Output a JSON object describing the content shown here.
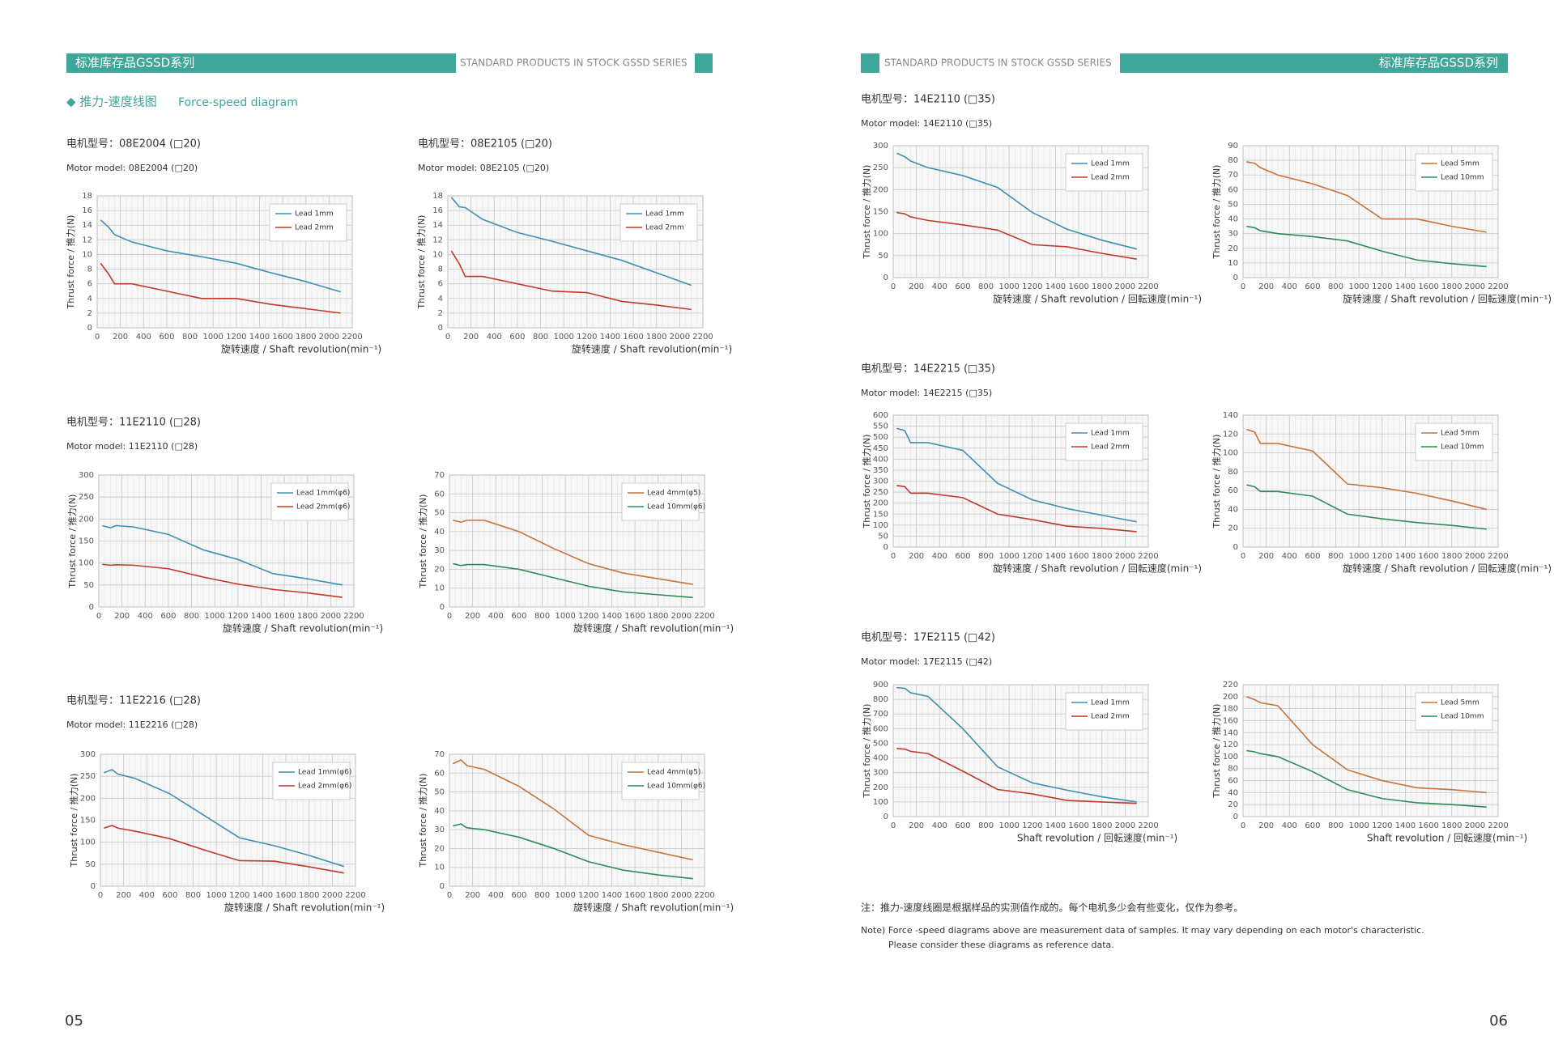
{
  "left_header": {
    "title": "标准库存品GSSD系列",
    "subtitle": "STANDARD PRODUCTS IN STOCK GSSD SERIES"
  },
  "right_header": {
    "title": "标准库存品GSSD系列",
    "subtitle": "STANDARD PRODUCTS IN STOCK GSSD SERIES"
  },
  "section_title": {
    "cn": "◆ 推力-速度线图",
    "en": "Force-speed diagram"
  },
  "models": [
    {
      "cn": "电机型号：08E2004 (□20)",
      "en": "Motor model: 08E2004 (□20)"
    },
    {
      "cn": "电机型号：08E2105 (□20)",
      "en": "Motor model: 08E2105 (□20)"
    },
    {
      "cn": "电机型号：11E2110 (□28)",
      "en": "Motor model: 11E2110 (□28)"
    },
    {
      "cn": "电机型号：11E2216 (□28)",
      "en": "Motor model: 11E2216 (□28)"
    },
    {
      "cn": "电机型号：14E2110 (□35)",
      "en": "Motor model: 14E2110 (□35)"
    },
    {
      "cn": "电机型号：14E2215 (□35)",
      "en": "Motor model: 14E2215 (□35)"
    },
    {
      "cn": "电机型号：17E2115 (□42)",
      "en": "Motor model: 17E2115 (□42)"
    }
  ],
  "chart_data": [
    {
      "type": "line",
      "x_label": "旋转速度 / Shaft revolution(min⁻¹)",
      "y_label": "Thrust force / 推力(N)",
      "x": [
        30,
        100,
        150,
        300,
        600,
        900,
        1200,
        1500,
        1800,
        2100
      ],
      "xlim": [
        0,
        2200
      ],
      "xticks": [
        0,
        200,
        400,
        600,
        800,
        1000,
        1200,
        1400,
        1600,
        1800,
        2000,
        2200
      ],
      "ylim": [
        0,
        18
      ],
      "yticks": [
        0,
        2,
        4,
        6,
        8,
        10,
        12,
        14,
        16,
        18
      ],
      "grid": true,
      "series": [
        {
          "name": "Lead 1mm",
          "color": "#3f8fb5",
          "values": [
            14.7,
            13.7,
            12.7,
            11.7,
            10.5,
            9.7,
            8.8,
            7.5,
            6.3,
            4.9
          ]
        },
        {
          "name": "Lead 2mm",
          "color": "#c0392b",
          "values": [
            8.8,
            7.3,
            6,
            6,
            5,
            4,
            4,
            3.2,
            2.6,
            2
          ]
        }
      ]
    },
    {
      "type": "line",
      "x_label": "旋转速度 / Shaft revolution(min⁻¹)",
      "y_label": "Thrust force / 推力(N)",
      "x": [
        30,
        100,
        150,
        300,
        600,
        900,
        1200,
        1500,
        1800,
        2100
      ],
      "xlim": [
        0,
        2200
      ],
      "xticks": [
        0,
        200,
        400,
        600,
        800,
        1000,
        1200,
        1400,
        1600,
        1800,
        2000,
        2200
      ],
      "ylim": [
        0,
        18
      ],
      "yticks": [
        0,
        2,
        4,
        6,
        8,
        10,
        12,
        14,
        16,
        18
      ],
      "grid": true,
      "series": [
        {
          "name": "Lead 1mm",
          "color": "#3f8fb5",
          "values": [
            17.8,
            16.5,
            16.4,
            14.8,
            13,
            11.8,
            10.5,
            9.2,
            7.5,
            5.8
          ]
        },
        {
          "name": "Lead 2mm",
          "color": "#c0392b",
          "values": [
            10.5,
            8.7,
            7,
            7,
            6,
            5,
            4.8,
            3.6,
            3.1,
            2.5
          ]
        }
      ]
    },
    {
      "type": "line",
      "x_label": "旋转速度 / Shaft revolution(min⁻¹)",
      "y_label": "Thrust force / 推力(N)",
      "x": [
        30,
        100,
        150,
        300,
        600,
        900,
        1200,
        1500,
        1800,
        2100
      ],
      "xlim": [
        0,
        2200
      ],
      "xticks": [
        0,
        200,
        400,
        600,
        800,
        1000,
        1200,
        1400,
        1600,
        1800,
        2000,
        2200
      ],
      "ylim": [
        0,
        300
      ],
      "yticks": [
        0,
        50,
        100,
        150,
        200,
        250,
        300
      ],
      "grid": true,
      "series": [
        {
          "name": "Lead 1mm(φ6)",
          "color": "#3f8fb5",
          "values": [
            185,
            180,
            185,
            182,
            165,
            130,
            108,
            76,
            64,
            50
          ]
        },
        {
          "name": "Lead 2mm(φ6)",
          "color": "#c0392b",
          "values": [
            97,
            95,
            96,
            95,
            87,
            68,
            52,
            40,
            32,
            22
          ]
        }
      ]
    },
    {
      "type": "line",
      "x_label": "旋转速度 / Shaft revolution(min⁻¹)",
      "y_label": "Thrust force / 推力(N)",
      "x": [
        30,
        100,
        150,
        300,
        600,
        900,
        1200,
        1500,
        1800,
        2100
      ],
      "xlim": [
        0,
        2200
      ],
      "xticks": [
        0,
        200,
        400,
        600,
        800,
        1000,
        1200,
        1400,
        1600,
        1800,
        2000,
        2200
      ],
      "ylim": [
        0,
        70
      ],
      "yticks": [
        0,
        10,
        20,
        30,
        40,
        50,
        60,
        70
      ],
      "grid": true,
      "series": [
        {
          "name": "Lead 4mm(φ5)",
          "color": "#c8733a",
          "values": [
            46,
            45,
            46,
            46,
            40,
            31,
            23,
            18,
            15,
            12
          ]
        },
        {
          "name": "Lead 10mm(φ6)",
          "color": "#2e8b57",
          "values": [
            23,
            22,
            22.5,
            22.5,
            20,
            15.5,
            11,
            8,
            6.5,
            5
          ]
        }
      ]
    },
    {
      "type": "line",
      "x_label": "旋转速度 / Shaft revolution(min⁻¹)",
      "y_label": "Thrust force / 推力(N)",
      "x": [
        30,
        100,
        150,
        300,
        600,
        900,
        1200,
        1500,
        1800,
        2100
      ],
      "xlim": [
        0,
        2200
      ],
      "xticks": [
        0,
        200,
        400,
        600,
        800,
        1000,
        1200,
        1400,
        1600,
        1800,
        2000,
        2200
      ],
      "ylim": [
        0,
        300
      ],
      "yticks": [
        0,
        50,
        100,
        150,
        200,
        250,
        300
      ],
      "grid": true,
      "series": [
        {
          "name": "Lead 1mm(φ6)",
          "color": "#3f8fb5",
          "values": [
            258,
            265,
            255,
            245,
            210,
            160,
            110,
            92,
            70,
            45
          ]
        },
        {
          "name": "Lead 2mm(φ6)",
          "color": "#c0392b",
          "values": [
            132,
            138,
            132,
            125,
            108,
            82,
            58,
            57,
            44,
            30
          ]
        }
      ]
    },
    {
      "type": "line",
      "x_label": "旋转速度 / Shaft revolution(min⁻¹)",
      "y_label": "Thrust force / 推力(N)",
      "x": [
        30,
        100,
        150,
        300,
        600,
        900,
        1200,
        1500,
        1800,
        2100
      ],
      "xlim": [
        0,
        2200
      ],
      "xticks": [
        0,
        200,
        400,
        600,
        800,
        1000,
        1200,
        1400,
        1600,
        1800,
        2000,
        2200
      ],
      "ylim": [
        0,
        70
      ],
      "yticks": [
        0,
        10,
        20,
        30,
        40,
        50,
        60,
        70
      ],
      "grid": true,
      "series": [
        {
          "name": "Lead 4mm(φ5)",
          "color": "#c8733a",
          "values": [
            65,
            67,
            64,
            62,
            53,
            41,
            27,
            22,
            18,
            14
          ]
        },
        {
          "name": "Lead 10mm(φ6)",
          "color": "#2e8b57",
          "values": [
            32,
            33,
            31,
            30,
            26,
            20,
            13,
            8.5,
            6,
            4
          ]
        }
      ]
    },
    {
      "type": "line",
      "x_label": "旋转速度 / Shaft revolution / 回転速度(min⁻¹)",
      "y_label": "Thrust force / 推力(N)",
      "x": [
        30,
        100,
        150,
        300,
        600,
        900,
        1200,
        1500,
        1800,
        2100
      ],
      "xlim": [
        0,
        2200
      ],
      "xticks": [
        0,
        200,
        400,
        600,
        800,
        1000,
        1200,
        1400,
        1600,
        1800,
        2000,
        2200
      ],
      "ylim": [
        0,
        300
      ],
      "yticks": [
        0,
        50,
        100,
        150,
        200,
        250,
        300
      ],
      "grid": true,
      "series": [
        {
          "name": "Lead 1mm",
          "color": "#3f8fb5",
          "values": [
            283,
            275,
            265,
            250,
            232,
            205,
            148,
            110,
            85,
            65
          ]
        },
        {
          "name": "Lead 2mm",
          "color": "#c0392b",
          "values": [
            148,
            145,
            138,
            130,
            120,
            108,
            75,
            70,
            55,
            42
          ]
        }
      ]
    },
    {
      "type": "line",
      "x_label": "旋转速度 / Shaft revolution / 回転速度(min⁻¹)",
      "y_label": "Thrust force / 推力(N)",
      "x": [
        30,
        100,
        150,
        300,
        600,
        900,
        1200,
        1500,
        1800,
        2100
      ],
      "xlim": [
        0,
        2200
      ],
      "xticks": [
        0,
        200,
        400,
        600,
        800,
        1000,
        1200,
        1400,
        1600,
        1800,
        2000,
        2200
      ],
      "ylim": [
        0,
        90
      ],
      "yticks": [
        0,
        10,
        20,
        30,
        40,
        50,
        60,
        70,
        80,
        90
      ],
      "grid": true,
      "series": [
        {
          "name": "Lead 5mm",
          "color": "#c8733a",
          "values": [
            79,
            78,
            75,
            70,
            64,
            56,
            40,
            40,
            35,
            31
          ]
        },
        {
          "name": "Lead 10mm",
          "color": "#2e8b57",
          "values": [
            35,
            34,
            32,
            30,
            28,
            25,
            18,
            12,
            9.5,
            7.5
          ]
        }
      ]
    },
    {
      "type": "line",
      "x_label": "旋转速度 / Shaft revolution / 回転速度(min⁻¹)",
      "y_label": "Thrust force / 推力(N)",
      "x": [
        30,
        100,
        150,
        300,
        600,
        900,
        1200,
        1500,
        1800,
        2100
      ],
      "xlim": [
        0,
        2200
      ],
      "xticks": [
        0,
        200,
        400,
        600,
        800,
        1000,
        1200,
        1400,
        1600,
        1800,
        2000,
        2200
      ],
      "ylim": [
        0,
        600
      ],
      "yticks": [
        0,
        50,
        100,
        150,
        200,
        250,
        300,
        350,
        400,
        450,
        500,
        550,
        600
      ],
      "grid": true,
      "series": [
        {
          "name": "Lead 1mm",
          "color": "#3f8fb5",
          "values": [
            540,
            530,
            475,
            475,
            440,
            290,
            215,
            175,
            145,
            115
          ]
        },
        {
          "name": "Lead 2mm",
          "color": "#c0392b",
          "values": [
            280,
            275,
            245,
            245,
            225,
            150,
            125,
            95,
            85,
            70
          ]
        }
      ]
    },
    {
      "type": "line",
      "x_label": "旋转速度 / Shaft revolution / 回転速度(min⁻¹)",
      "y_label": "Thrust force / 推力(N)",
      "x": [
        30,
        100,
        150,
        300,
        600,
        900,
        1200,
        1500,
        1800,
        2100
      ],
      "xlim": [
        0,
        2200
      ],
      "xticks": [
        0,
        200,
        400,
        600,
        800,
        1000,
        1200,
        1400,
        1600,
        1800,
        2000,
        2200
      ],
      "ylim": [
        0,
        140
      ],
      "yticks": [
        0,
        20,
        40,
        60,
        80,
        100,
        120,
        140
      ],
      "grid": true,
      "series": [
        {
          "name": "Lead 5mm",
          "color": "#c8733a",
          "values": [
            125,
            122,
            110,
            110,
            102,
            67,
            63,
            57,
            49,
            40
          ]
        },
        {
          "name": "Lead 10mm",
          "color": "#2e8b57",
          "values": [
            66,
            64,
            59,
            59,
            54,
            35,
            30,
            26,
            23,
            19
          ]
        }
      ]
    },
    {
      "type": "line",
      "x_label": "Shaft revolution / 回転速度(min⁻¹)",
      "y_label": "Thrust force / 推力(N)",
      "x": [
        30,
        100,
        150,
        300,
        600,
        900,
        1200,
        1500,
        1800,
        2100
      ],
      "xlim": [
        0,
        2200
      ],
      "xticks": [
        0,
        200,
        400,
        600,
        800,
        1000,
        1200,
        1400,
        1600,
        1800,
        2000,
        2200
      ],
      "ylim": [
        0,
        900
      ],
      "yticks": [
        0,
        100,
        200,
        300,
        400,
        500,
        600,
        700,
        800,
        900
      ],
      "grid": true,
      "series": [
        {
          "name": "Lead 1mm",
          "color": "#3f8fb5",
          "values": [
            880,
            875,
            845,
            820,
            600,
            340,
            230,
            180,
            135,
            100
          ]
        },
        {
          "name": "Lead 2mm",
          "color": "#c0392b",
          "values": [
            465,
            460,
            445,
            430,
            310,
            185,
            155,
            110,
            100,
            90
          ]
        }
      ]
    },
    {
      "type": "line",
      "x_label": "Shaft revolution / 回転速度(min⁻¹)",
      "y_label": "Thrust force / 推力(N)",
      "x": [
        30,
        100,
        150,
        300,
        600,
        900,
        1200,
        1500,
        1800,
        2100
      ],
      "xlim": [
        0,
        2200
      ],
      "xticks": [
        0,
        200,
        400,
        600,
        800,
        1000,
        1200,
        1400,
        1600,
        1800,
        2000,
        2200
      ],
      "ylim": [
        0,
        220
      ],
      "yticks": [
        0,
        20,
        40,
        60,
        80,
        100,
        120,
        140,
        160,
        180,
        200,
        220
      ],
      "grid": true,
      "series": [
        {
          "name": "Lead 5mm",
          "color": "#c8733a",
          "values": [
            200,
            195,
            190,
            185,
            120,
            78,
            60,
            48,
            45,
            40
          ]
        },
        {
          "name": "Lead 10mm",
          "color": "#2e8b57",
          "values": [
            110,
            108,
            105,
            100,
            75,
            45,
            30,
            23,
            20,
            16
          ]
        }
      ]
    }
  ],
  "note": {
    "cn": "注：推力-速度线圈是根据样品的实测值作成的。每个电机多少会有些变化，仅作为参考。",
    "en_1": "Note) Force -speed diagrams above are measurement data of samples. It may vary depending on each motor's characteristic.",
    "en_2": "Please consider these diagrams as reference data."
  },
  "page_numbers": {
    "left": "05",
    "right": "06"
  }
}
